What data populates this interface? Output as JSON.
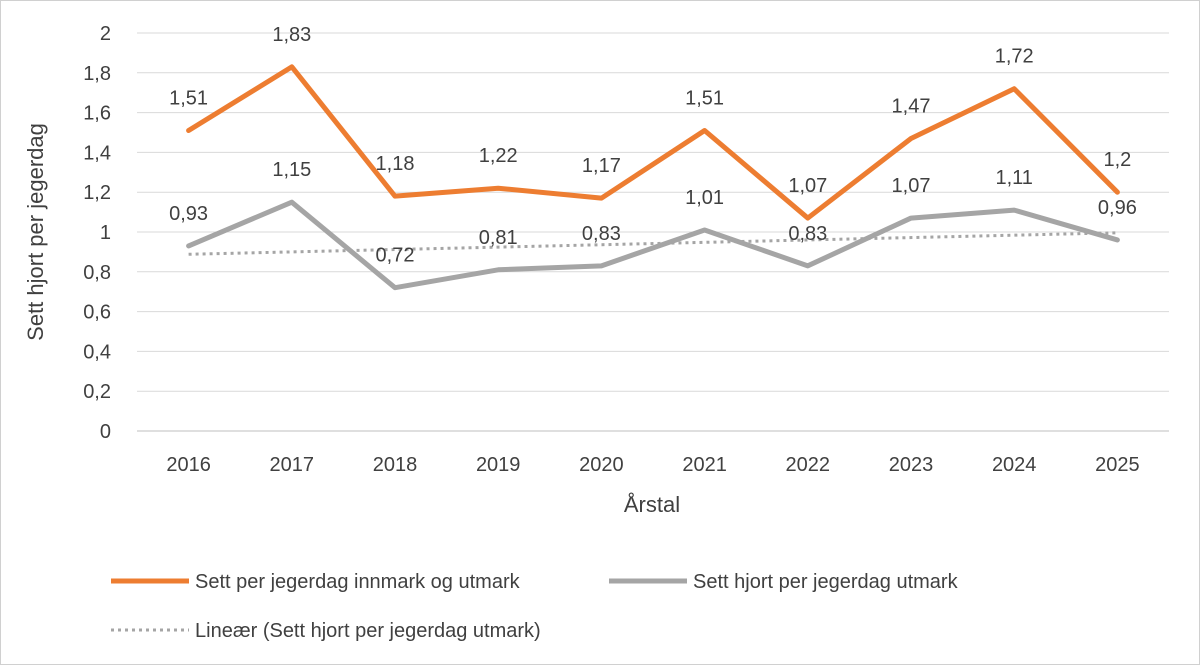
{
  "chart_data": {
    "type": "line",
    "title": "",
    "xlabel": "Årstal",
    "ylabel": "Sett hjort per jegerdag",
    "ylim": [
      0,
      2
    ],
    "ytick_step": 0.2,
    "yticks": [
      "0",
      "0,2",
      "0,4",
      "0,6",
      "0,8",
      "1",
      "1,2",
      "1,4",
      "1,6",
      "1,8",
      "2"
    ],
    "grid": true,
    "legend_position": "bottom",
    "categories": [
      "2016",
      "2017",
      "2018",
      "2019",
      "2020",
      "2021",
      "2022",
      "2023",
      "2024",
      "2025"
    ],
    "series": [
      {
        "name": "Sett per jegerdag innmark og utmark",
        "color": "#ED7D31",
        "style": "solid",
        "values": [
          1.51,
          1.83,
          1.18,
          1.22,
          1.17,
          1.51,
          1.07,
          1.47,
          1.72,
          1.2
        ],
        "labels": [
          "1,51",
          "1,83",
          "1,18",
          "1,22",
          "1,17",
          "1,51",
          "1,07",
          "1,47",
          "1,72",
          "1,2"
        ]
      },
      {
        "name": "Sett hjort per jegerdag utmark",
        "color": "#A5A5A5",
        "style": "solid",
        "values": [
          0.93,
          1.15,
          0.72,
          0.81,
          0.83,
          1.01,
          0.83,
          1.07,
          1.11,
          0.96
        ],
        "labels": [
          "0,93",
          "1,15",
          "0,72",
          "0,81",
          "0,83",
          "1,01",
          "0,83",
          "1,07",
          "1,11",
          "0,96"
        ]
      }
    ],
    "trendline": {
      "name": "Lineær (Sett hjort per jegerdag utmark)",
      "color": "#A5A5A5",
      "style": "dotted",
      "of_series": 1
    }
  }
}
